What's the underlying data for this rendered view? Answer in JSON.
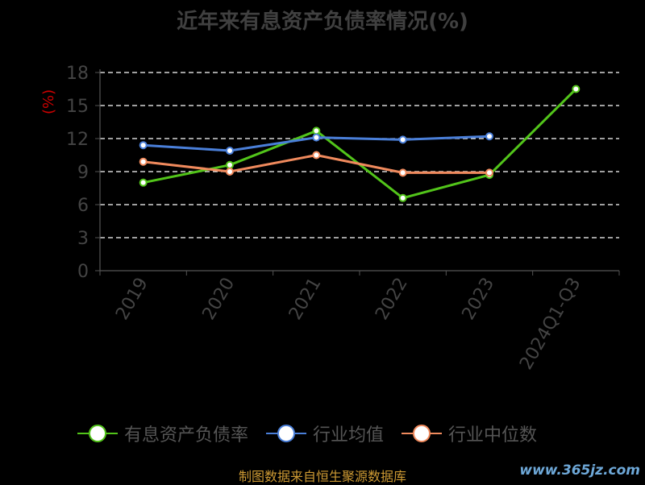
{
  "chart_data": {
    "type": "line",
    "title": "近年来有息资产负债率情况(%)",
    "ylabel": "(%)",
    "categories": [
      "2019",
      "2020",
      "2021",
      "2022",
      "2023",
      "2024Q1-Q3"
    ],
    "ylim": [
      0,
      18
    ],
    "yticks": [
      0,
      3,
      6,
      9,
      12,
      15,
      18
    ],
    "grid": true,
    "legend_position": "bottom",
    "series": [
      {
        "name": "有息资产负债率",
        "color": "#52c41a",
        "values": [
          8.0,
          9.6,
          12.7,
          6.6,
          8.7,
          16.5
        ]
      },
      {
        "name": "行业均值",
        "color": "#4a7fd9",
        "values": [
          11.4,
          10.9,
          12.1,
          11.9,
          12.2,
          null
        ]
      },
      {
        "name": "行业中位数",
        "color": "#f08a5d",
        "values": [
          9.9,
          9.0,
          10.5,
          8.9,
          8.9,
          null
        ]
      }
    ]
  },
  "footer": {
    "source": "制图数据来自恒生聚源数据库",
    "watermark": "www.365jz.com"
  }
}
